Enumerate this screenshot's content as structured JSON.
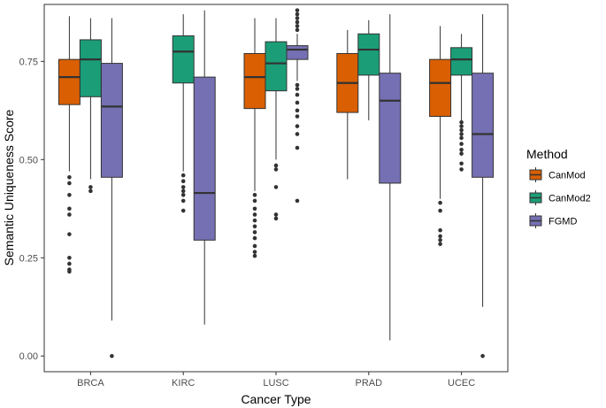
{
  "chart_data": {
    "type": "boxplot",
    "title": "",
    "xlabel": "Cancer Type",
    "ylabel": "Semantic Uniqueness Score",
    "ylim": [
      -0.04,
      0.895
    ],
    "yticks": [
      "0.00",
      "0.25",
      "0.50",
      "0.75"
    ],
    "ytick_values": [
      0,
      0.25,
      0.5,
      0.75
    ],
    "categories": [
      "BRCA",
      "KIRC",
      "LUSC",
      "PRAD",
      "UCEC"
    ],
    "grid": false,
    "legend": {
      "title": "Method",
      "position": "right"
    },
    "series": [
      {
        "name": "CanMod",
        "color": "#D95F02",
        "boxes": [
          {
            "category": "BRCA",
            "whisker_low": 0.47,
            "q1": 0.64,
            "median": 0.71,
            "q3": 0.755,
            "whisker_high": 0.865,
            "outliers": [
              0.455,
              0.44,
              0.41,
              0.375,
              0.36,
              0.31,
              0.25,
              0.235,
              0.22,
              0.215
            ]
          },
          {
            "category": "KIRC",
            "whisker_low": null,
            "q1": null,
            "median": null,
            "q3": null,
            "whisker_high": null,
            "outliers": []
          },
          {
            "category": "LUSC",
            "whisker_low": 0.42,
            "q1": 0.63,
            "median": 0.71,
            "q3": 0.77,
            "whisker_high": 0.86,
            "outliers": [
              0.41,
              0.395,
              0.375,
              0.36,
              0.345,
              0.33,
              0.315,
              0.3,
              0.28,
              0.265,
              0.255
            ]
          },
          {
            "category": "PRAD",
            "whisker_low": 0.45,
            "q1": 0.62,
            "median": 0.695,
            "q3": 0.77,
            "whisker_high": 0.83,
            "outliers": []
          },
          {
            "category": "UCEC",
            "whisker_low": 0.4,
            "q1": 0.61,
            "median": 0.695,
            "q3": 0.755,
            "whisker_high": 0.84,
            "outliers": [
              0.39,
              0.37,
              0.32,
              0.305,
              0.295,
              0.285
            ]
          }
        ]
      },
      {
        "name": "CanMod2",
        "color": "#1B9E77",
        "boxes": [
          {
            "category": "BRCA",
            "whisker_low": 0.45,
            "q1": 0.66,
            "median": 0.755,
            "q3": 0.805,
            "whisker_high": 0.86,
            "outliers": [
              0.43,
              0.42
            ]
          },
          {
            "category": "KIRC",
            "whisker_low": 0.47,
            "q1": 0.695,
            "median": 0.775,
            "q3": 0.815,
            "whisker_high": 0.87,
            "outliers": [
              0.46,
              0.445,
              0.43,
              0.42,
              0.41,
              0.395,
              0.37
            ]
          },
          {
            "category": "LUSC",
            "whisker_low": 0.5,
            "q1": 0.675,
            "median": 0.745,
            "q3": 0.8,
            "whisker_high": 0.86,
            "outliers": [
              0.485,
              0.475,
              0.43,
              0.36,
              0.35
            ]
          },
          {
            "category": "PRAD",
            "whisker_low": 0.6,
            "q1": 0.715,
            "median": 0.78,
            "q3": 0.82,
            "whisker_high": 0.855,
            "outliers": []
          },
          {
            "category": "UCEC",
            "whisker_low": 0.6,
            "q1": 0.715,
            "median": 0.755,
            "q3": 0.785,
            "whisker_high": 0.82,
            "outliers": [
              0.595,
              0.585,
              0.575,
              0.565,
              0.555,
              0.54,
              0.525,
              0.515,
              0.49,
              0.475
            ]
          }
        ]
      },
      {
        "name": "FGMD",
        "color": "#7570B3",
        "boxes": [
          {
            "category": "BRCA",
            "whisker_low": 0.09,
            "q1": 0.455,
            "median": 0.635,
            "q3": 0.745,
            "whisker_high": 0.86,
            "outliers": [
              0.0
            ]
          },
          {
            "category": "KIRC",
            "whisker_low": 0.08,
            "q1": 0.295,
            "median": 0.415,
            "q3": 0.71,
            "whisker_high": 0.88,
            "outliers": []
          },
          {
            "category": "LUSC",
            "whisker_low": 0.7,
            "q1": 0.755,
            "median": 0.78,
            "q3": 0.79,
            "whisker_high": 0.82,
            "outliers": [
              0.88,
              0.87,
              0.86,
              0.85,
              0.84,
              0.83,
              0.69,
              0.68,
              0.665,
              0.645,
              0.625,
              0.61,
              0.585,
              0.565,
              0.53,
              0.395
            ]
          },
          {
            "category": "PRAD",
            "whisker_low": 0.04,
            "q1": 0.44,
            "median": 0.65,
            "q3": 0.72,
            "whisker_high": 0.87,
            "outliers": []
          },
          {
            "category": "UCEC",
            "whisker_low": 0.125,
            "q1": 0.455,
            "median": 0.565,
            "q3": 0.72,
            "whisker_high": 0.87,
            "outliers": [
              0.0
            ]
          }
        ]
      }
    ]
  }
}
